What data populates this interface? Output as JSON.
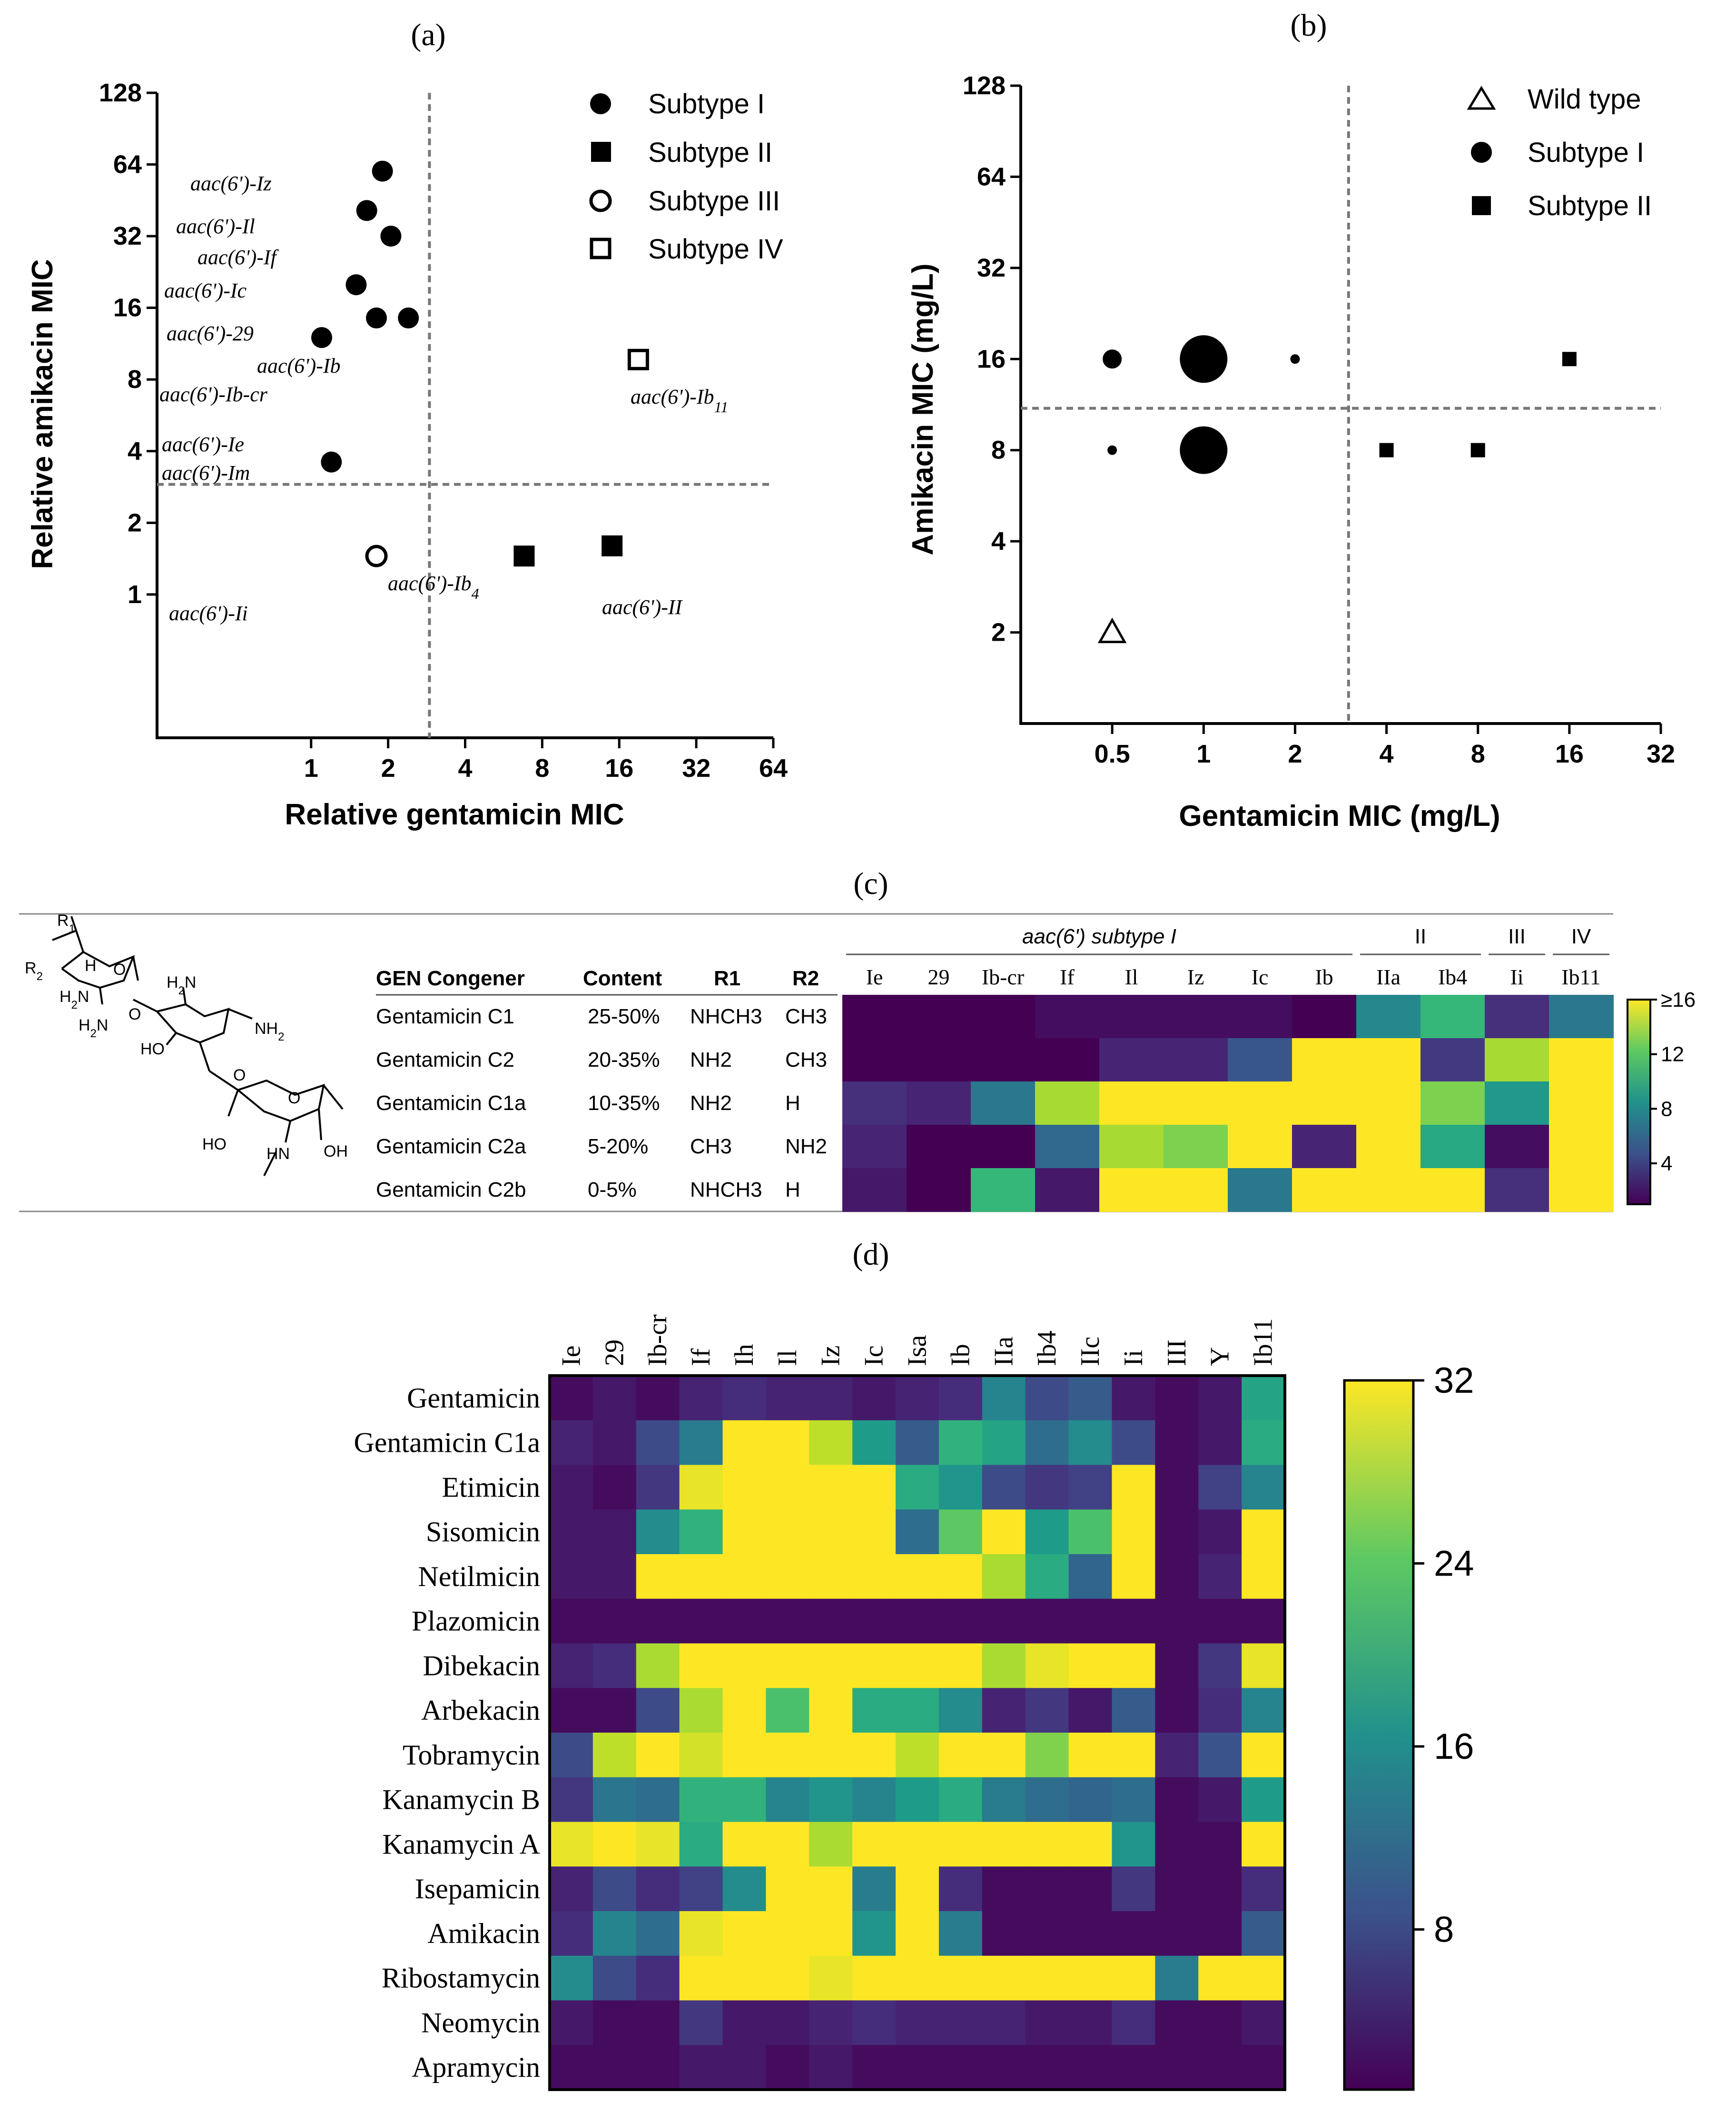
{
  "panels": {
    "a": "(a)",
    "b": "(b)",
    "c": "(c)",
    "d": "(d)"
  },
  "chart_data": [
    {
      "id": "a",
      "type": "scatter",
      "title": "",
      "xlabel": "Relative gentamicin MIC",
      "ylabel": "Relative amikacin MIC",
      "scale": "log2",
      "xlim": [
        0.25,
        64
      ],
      "ylim": [
        0.25,
        128
      ],
      "xticks": [
        "1",
        "2",
        "4",
        "8",
        "16",
        "32",
        "64"
      ],
      "yticks": [
        "1",
        "2",
        "4",
        "8",
        "16",
        "32",
        "64",
        "128"
      ],
      "thresholds": {
        "x": 2.9,
        "y": 2.9
      },
      "legend": [
        {
          "name": "Subtype I",
          "marker": "filled-circle"
        },
        {
          "name": "Subtype II",
          "marker": "filled-square"
        },
        {
          "name": "Subtype III",
          "marker": "open-circle"
        },
        {
          "name": "Subtype IV",
          "marker": "open-square"
        }
      ],
      "points": [
        {
          "x": 1.9,
          "y": 60,
          "marker": "filled-circle"
        },
        {
          "x": 1.65,
          "y": 41,
          "marker": "filled-circle"
        },
        {
          "x": 2.05,
          "y": 32,
          "marker": "filled-circle"
        },
        {
          "x": 1.5,
          "y": 20,
          "marker": "filled-circle"
        },
        {
          "x": 1.8,
          "y": 14.5,
          "marker": "filled-circle"
        },
        {
          "x": 2.4,
          "y": 14.5,
          "marker": "filled-circle"
        },
        {
          "x": 1.1,
          "y": 12,
          "marker": "filled-circle"
        },
        {
          "x": 1.2,
          "y": 3.6,
          "marker": "filled-circle"
        },
        {
          "x": 1.8,
          "y": 1.45,
          "marker": "open-circle"
        },
        {
          "x": 6.8,
          "y": 1.45,
          "marker": "filled-square"
        },
        {
          "x": 15,
          "y": 1.6,
          "marker": "filled-square"
        },
        {
          "x": 19,
          "y": 9.7,
          "marker": "open-square"
        }
      ],
      "annotations": [
        {
          "pre": "aac(6')-Iz"
        },
        {
          "pre": "aac(6')-Il"
        },
        {
          "pre": "aac(6')-If"
        },
        {
          "pre": "aac(6')-Ic"
        },
        {
          "pre": "aac(6')-29"
        },
        {
          "pre": "aac(6')-Ib"
        },
        {
          "pre": "aac(6')-Ib-cr"
        },
        {
          "pre": "aac(6')-Ie"
        },
        {
          "pre": "aac(6')-Im"
        },
        {
          "pre": "aac(6')-Ii"
        },
        {
          "pre": "aac(6')-Ib",
          "sub": "4"
        },
        {
          "pre": "aac(6')-II"
        },
        {
          "pre": "aac(6')-Ib",
          "sub": "11"
        }
      ]
    },
    {
      "id": "b",
      "type": "scatter",
      "title": "",
      "xlabel": "Gentamicin MIC (mg/L)",
      "ylabel": "Amikacin MIC (mg/L)",
      "scale": "log2",
      "xlim": [
        0.25,
        32
      ],
      "ylim": [
        1,
        128
      ],
      "xticks": [
        "0.5",
        "1",
        "2",
        "4",
        "8",
        "16",
        "32"
      ],
      "yticks": [
        "2",
        "4",
        "8",
        "16",
        "32",
        "64",
        "128"
      ],
      "thresholds": {
        "x": 3,
        "y": 11
      },
      "legend": [
        {
          "name": "Wild type",
          "marker": "open-triangle"
        },
        {
          "name": "Subtype I",
          "marker": "filled-circle"
        },
        {
          "name": "Subtype II",
          "marker": "filled-square"
        }
      ],
      "points": [
        {
          "x": 0.5,
          "y": 16,
          "marker": "filled-circle",
          "size": 2
        },
        {
          "x": 1,
          "y": 16,
          "marker": "filled-circle",
          "size": 5
        },
        {
          "x": 2,
          "y": 16,
          "marker": "filled-circle",
          "size": 1
        },
        {
          "x": 0.5,
          "y": 8,
          "marker": "filled-circle",
          "size": 1
        },
        {
          "x": 1,
          "y": 8,
          "marker": "filled-circle",
          "size": 5
        },
        {
          "x": 16,
          "y": 16,
          "marker": "filled-square",
          "size": 1
        },
        {
          "x": 4,
          "y": 8,
          "marker": "filled-square",
          "size": 1
        },
        {
          "x": 8,
          "y": 8,
          "marker": "filled-square",
          "size": 1
        },
        {
          "x": 0.5,
          "y": 2,
          "marker": "open-triangle",
          "size": 1
        }
      ]
    },
    {
      "id": "c",
      "type": "heatmap",
      "title": "aac(6') subtype I",
      "table_headers": [
        "GEN Congener",
        "Content",
        "R1",
        "R2"
      ],
      "rows": [
        {
          "name": "Gentamicin C1",
          "content": "25-50%",
          "r1": "NHCH3",
          "r2": "CH3"
        },
        {
          "name": "Gentamicin C2",
          "content": "20-35%",
          "r1": "NH2",
          "r2": "CH3"
        },
        {
          "name": "Gentamicin C1a",
          "content": "10-35%",
          "r1": "NH2",
          "r2": "H"
        },
        {
          "name": "Gentamicin C2a",
          "content": "5-20%",
          "r1": "CH3",
          "r2": "NH2"
        },
        {
          "name": "Gentamicin C2b",
          "content": "0-5%",
          "r1": "NHCH3",
          "r2": "H"
        }
      ],
      "groups": [
        {
          "label": "aac(6')  subtype I",
          "span": 8
        },
        {
          "label": "II",
          "span": 2
        },
        {
          "label": "III",
          "span": 1
        },
        {
          "label": "IV",
          "span": 1
        }
      ],
      "columns": [
        "Ie",
        "29",
        "Ib-cr",
        "If",
        "Il",
        "Iz",
        "Ic",
        "Ib",
        "IIa",
        "Ib4",
        "Ii",
        "Ib11"
      ],
      "values": [
        [
          1,
          1,
          1,
          1.5,
          1.5,
          1.5,
          1.5,
          1,
          8,
          11,
          3,
          7
        ],
        [
          1,
          1,
          1,
          1,
          2.5,
          2.5,
          5,
          16,
          16,
          3.5,
          14,
          16
        ],
        [
          3,
          2.5,
          7,
          14,
          16,
          16,
          16,
          16,
          16,
          13,
          9,
          16
        ],
        [
          2.5,
          1,
          0.5,
          6,
          14,
          13,
          16,
          2.5,
          16,
          10,
          1.5,
          16
        ],
        [
          2,
          1,
          11,
          2,
          16,
          16,
          7,
          16,
          16,
          16,
          3,
          16
        ]
      ],
      "colorbar": {
        "ticks": [
          "4",
          "8",
          "12",
          "≥16"
        ],
        "min": 1,
        "max": 16
      }
    },
    {
      "id": "d",
      "type": "heatmap",
      "columns": [
        "Ie",
        "29",
        "Ib-cr",
        "If",
        "Ih",
        "Il",
        "Iz",
        "Ic",
        "Isa",
        "Ib",
        "IIa",
        "Ib4",
        "IIc",
        "Ii",
        "III",
        "Y",
        "Ib11"
      ],
      "rows": [
        "Gentamicin",
        "Gentamicin C1a",
        "Etimicin",
        "Sisomicin",
        "Netilmicin",
        "Plazomicin",
        "Dibekacin",
        "Arbekacin",
        "Tobramycin",
        "Kanamycin B",
        "Kanamycin A",
        "Isepamicin",
        "Amikacin",
        "Ribostamycin",
        "Neomycin",
        "Apramycin"
      ],
      "values": [
        [
          2,
          3,
          2,
          4,
          5,
          4,
          4,
          3,
          4,
          5,
          15,
          8,
          10,
          3,
          2,
          3,
          19
        ],
        [
          4,
          3,
          8,
          14,
          32,
          32,
          29,
          18,
          10,
          21,
          19,
          12,
          16,
          8,
          2,
          3,
          20
        ],
        [
          3,
          2,
          6,
          31,
          32,
          32,
          32,
          32,
          20,
          17,
          8,
          6,
          7,
          32,
          2,
          7,
          15
        ],
        [
          3,
          3,
          16,
          21,
          32,
          32,
          32,
          32,
          12,
          24,
          32,
          18,
          23,
          32,
          2,
          3,
          32
        ],
        [
          3,
          3,
          32,
          32,
          32,
          32,
          32,
          32,
          32,
          32,
          28,
          20,
          11,
          32,
          2,
          4,
          32
        ],
        [
          2,
          2,
          2,
          2,
          2,
          2,
          2,
          2,
          2,
          2,
          2,
          2,
          2,
          2,
          2,
          2,
          2
        ],
        [
          4,
          5,
          28,
          32,
          32,
          32,
          32,
          32,
          32,
          32,
          28,
          31,
          32,
          32,
          2,
          6,
          31
        ],
        [
          2,
          2,
          8,
          28,
          32,
          23,
          32,
          20,
          20,
          16,
          4,
          6,
          3,
          10,
          2,
          5,
          15
        ],
        [
          8,
          29,
          32,
          30,
          32,
          32,
          32,
          32,
          29,
          32,
          32,
          26,
          32,
          32,
          4,
          9,
          32
        ],
        [
          6,
          13,
          12,
          21,
          21,
          15,
          17,
          15,
          18,
          20,
          14,
          12,
          11,
          12,
          2,
          3,
          18
        ],
        [
          31,
          32,
          31,
          20,
          32,
          32,
          28,
          32,
          32,
          32,
          32,
          32,
          32,
          17,
          2,
          2,
          32
        ],
        [
          4,
          8,
          5,
          7,
          16,
          32,
          32,
          14,
          32,
          5,
          2,
          2,
          2,
          6,
          2,
          2,
          5
        ],
        [
          5,
          15,
          12,
          31,
          32,
          32,
          32,
          17,
          32,
          14,
          2,
          2,
          2,
          2,
          2,
          2,
          10
        ],
        [
          16,
          8,
          5,
          32,
          32,
          32,
          31,
          32,
          32,
          32,
          32,
          32,
          32,
          32,
          14,
          32,
          32
        ],
        [
          3,
          2,
          2,
          6,
          3,
          3,
          4,
          5,
          4,
          4,
          4,
          3,
          3,
          5,
          2,
          2,
          3
        ],
        [
          2,
          2,
          2,
          3,
          3,
          2,
          3,
          2,
          2,
          2,
          2,
          2,
          2,
          2,
          2,
          2,
          2
        ]
      ],
      "colorbar": {
        "ticks": [
          "8",
          "16",
          "24",
          "32"
        ],
        "min": 1,
        "max": 32
      }
    }
  ]
}
